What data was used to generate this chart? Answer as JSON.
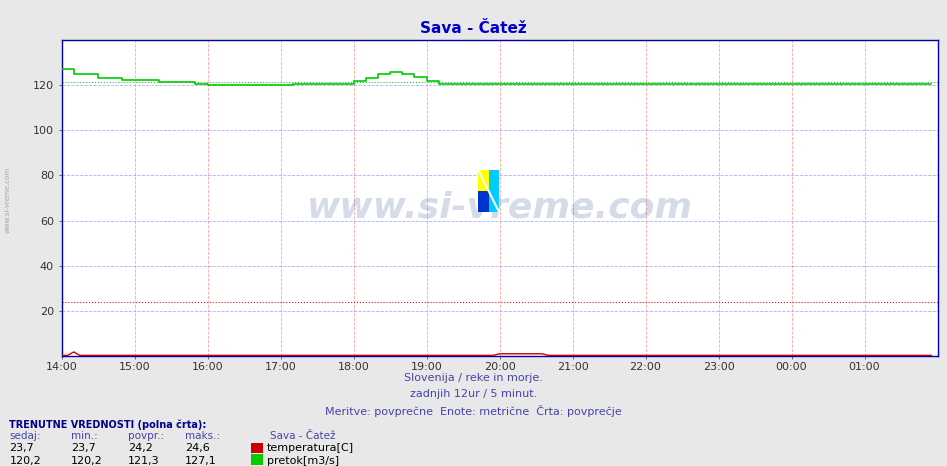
{
  "title": "Sava - Čatež",
  "title_color": "#0000cc",
  "bg_color": "#e8e8e8",
  "plot_bg_color": "#ffffff",
  "fig_width": 9.47,
  "fig_height": 4.66,
  "dpi": 100,
  "xlim": [
    0,
    144
  ],
  "ylim": [
    0,
    140
  ],
  "yticks": [
    20,
    40,
    60,
    80,
    100,
    120
  ],
  "xtick_labels": [
    "14:00",
    "15:00",
    "16:00",
    "17:00",
    "18:00",
    "19:00",
    "20:00",
    "21:00",
    "22:00",
    "23:00",
    "00:00",
    "01:00"
  ],
  "grid_color_v": "#ff9999",
  "grid_color_h": "#9999ff",
  "temp_color": "#cc0000",
  "flow_color": "#00cc00",
  "watermark_text": "www.si-vreme.com",
  "watermark_color": "#1a3a8a",
  "watermark_alpha": 0.18,
  "subtitle1": "Slovenija / reke in morje.",
  "subtitle2": "zadnjih 12ur / 5 minut.",
  "subtitle3": "Meritve: povprečne  Enote: metrične  Črta: povprečje",
  "subtitle_color": "#4444aa",
  "left_label": "www.si-vreme.com",
  "temp_avg": 24.2,
  "flow_avg": 121.3,
  "temp_curr": 23.7,
  "temp_min": 23.7,
  "temp_max": 24.6,
  "flow_curr": 120.2,
  "flow_min": 120.2,
  "flow_max": 127.1,
  "table_label_color": "#000088"
}
